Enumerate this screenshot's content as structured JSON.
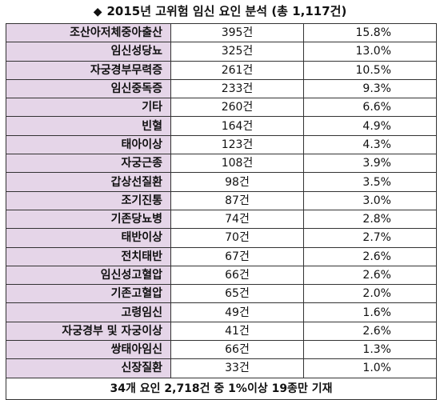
{
  "title": {
    "marker": "◆",
    "text": "2015년 고위험 임신 요인 분석 (총 1,117건)"
  },
  "rows": [
    {
      "factor": "조산아저체중아출산",
      "count": "395건",
      "pct": "15.8%"
    },
    {
      "factor": "임신성당뇨",
      "count": "325건",
      "pct": "13.0%"
    },
    {
      "factor": "자궁경부무력증",
      "count": "261건",
      "pct": "10.5%"
    },
    {
      "factor": "임신중독증",
      "count": "233건",
      "pct": "9.3%"
    },
    {
      "factor": "기타",
      "count": "260건",
      "pct": "6.6%"
    },
    {
      "factor": "빈혈",
      "count": "164건",
      "pct": "4.9%"
    },
    {
      "factor": "태아이상",
      "count": "123건",
      "pct": "4.3%"
    },
    {
      "factor": "자궁근종",
      "count": "108건",
      "pct": "3.9%"
    },
    {
      "factor": "갑상선질환",
      "count": "98건",
      "pct": "3.5%"
    },
    {
      "factor": "조기진통",
      "count": "87건",
      "pct": "3.0%"
    },
    {
      "factor": "기존당뇨병",
      "count": "74건",
      "pct": "2.8%"
    },
    {
      "factor": "태반이상",
      "count": "70건",
      "pct": "2.7%"
    },
    {
      "factor": "전치태반",
      "count": "67건",
      "pct": "2.6%"
    },
    {
      "factor": "임신성고혈압",
      "count": "66건",
      "pct": "2.6%"
    },
    {
      "factor": "기존고혈압",
      "count": "65건",
      "pct": "2.0%"
    },
    {
      "factor": "고령임신",
      "count": "49건",
      "pct": "1.6%"
    },
    {
      "factor": "자궁경부 및 자궁이상",
      "count": "41건",
      "pct": "2.6%"
    },
    {
      "factor": "쌍태아임신",
      "count": "66건",
      "pct": "1.3%"
    },
    {
      "factor": "신장질환",
      "count": "33건",
      "pct": "1.0%"
    }
  ],
  "footer": "34개 요인 2,718건 중 1%이상 19종만 기재",
  "colors": {
    "factor_bg": "#e5d5e8",
    "border": "#333333"
  }
}
